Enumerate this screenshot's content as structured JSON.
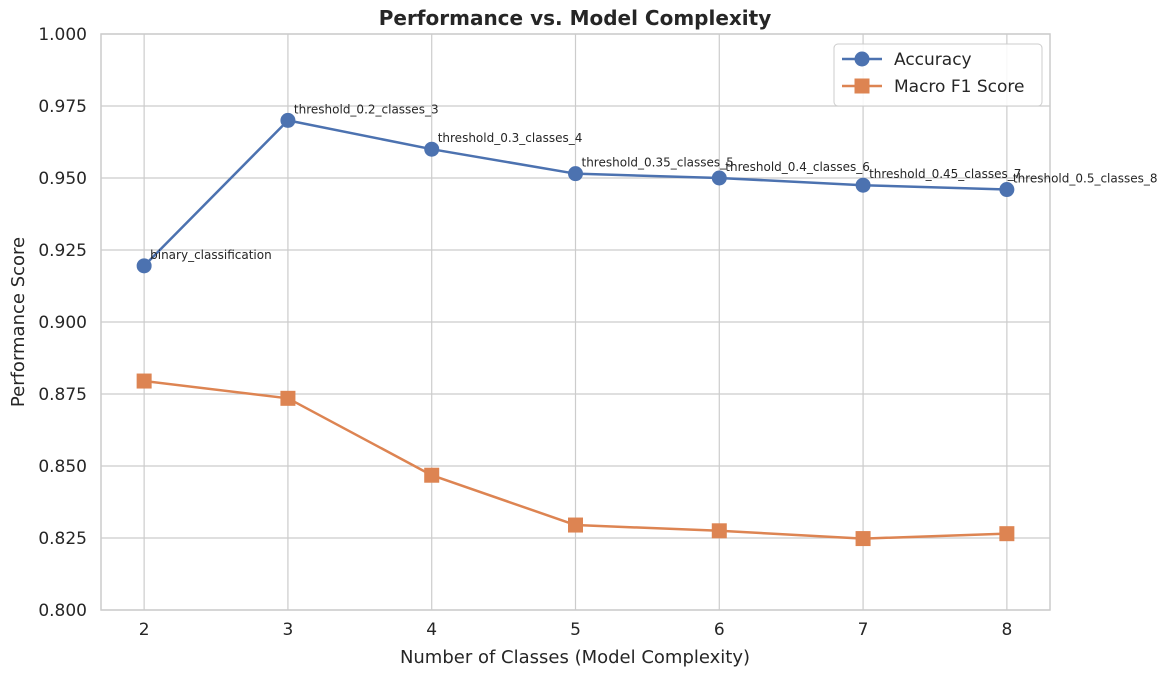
{
  "chart_data": {
    "type": "line",
    "title": "Performance vs. Model Complexity",
    "xlabel": "Number of Classes (Model Complexity)",
    "ylabel": "Performance Score",
    "x": [
      2,
      3,
      4,
      5,
      6,
      7,
      8
    ],
    "xlim": [
      1.7,
      8.3
    ],
    "ylim": [
      0.8,
      1.0
    ],
    "xticks": [
      "2",
      "3",
      "4",
      "5",
      "6",
      "7",
      "8"
    ],
    "yticks": [
      "0.800",
      "0.825",
      "0.850",
      "0.875",
      "0.900",
      "0.925",
      "0.950",
      "0.975",
      "1.000"
    ],
    "grid": true,
    "legend_position": "top-right",
    "series": [
      {
        "name": "Accuracy",
        "marker": "circle",
        "color": "#4c72b0",
        "values": [
          0.9195,
          0.97,
          0.96,
          0.9515,
          0.95,
          0.9475,
          0.946
        ]
      },
      {
        "name": "Macro F1 Score",
        "marker": "square",
        "color": "#dd8452",
        "values": [
          0.8795,
          0.8735,
          0.8468,
          0.8295,
          0.8275,
          0.8248,
          0.8265
        ]
      }
    ],
    "annotations": [
      {
        "x": 2,
        "y": 0.9195,
        "text": "binary_classification"
      },
      {
        "x": 3,
        "y": 0.97,
        "text": "threshold_0.2_classes_3"
      },
      {
        "x": 4,
        "y": 0.96,
        "text": "threshold_0.3_classes_4"
      },
      {
        "x": 5,
        "y": 0.9515,
        "text": "threshold_0.35_classes_5"
      },
      {
        "x": 6,
        "y": 0.95,
        "text": "threshold_0.4_classes_6"
      },
      {
        "x": 7,
        "y": 0.9475,
        "text": "threshold_0.45_classes_7"
      },
      {
        "x": 8,
        "y": 0.946,
        "text": "threshold_0.5_classes_8"
      }
    ]
  }
}
